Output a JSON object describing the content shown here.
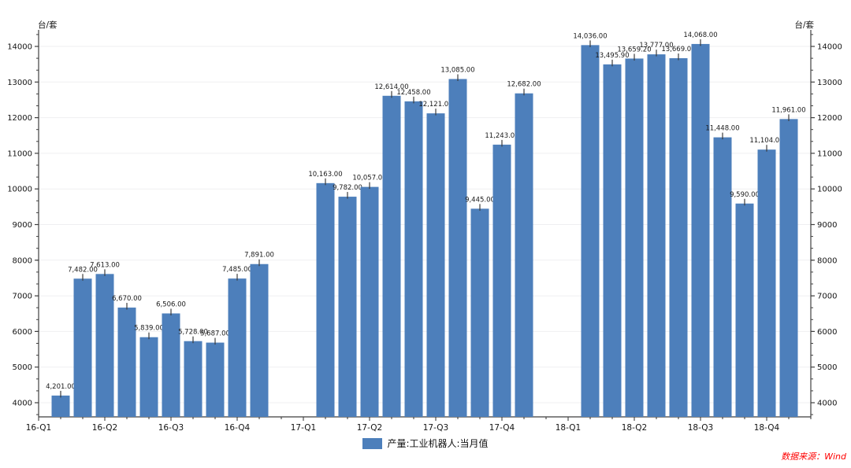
{
  "chart_data": {
    "type": "bar",
    "title": "",
    "unit_left": "台/套",
    "unit_right": "台/套",
    "legend": {
      "label": "产量:工业机器人:当月值"
    },
    "source_note": "数据来源：Wind",
    "colors": {
      "bar": "#4d7fbb",
      "axis": "#3f3f3f",
      "grid": "#efeff1",
      "tick_label": "#141414",
      "value_label": "#1a1a1a",
      "source": "#fe0000"
    },
    "y_axis": {
      "major_min": 4000,
      "major_max": 14000,
      "major_step": 1000,
      "minor_divisions": 3,
      "grid": true,
      "sides": "both"
    },
    "x_axis": {
      "quarter_labels": [
        "16-Q1",
        "16-Q2",
        "16-Q3",
        "16-Q4",
        "17-Q1",
        "17-Q2",
        "17-Q3",
        "17-Q4",
        "18-Q1",
        "18-Q2",
        "18-Q3",
        "18-Q4"
      ],
      "minor_tick_unit": "month",
      "months_span": [
        "2016-01",
        "2018-12"
      ]
    },
    "series": [
      {
        "name": "产量:工业机器人:当月值",
        "points": [
          {
            "month": "2016-02",
            "value": 4201,
            "display": "4,201.00"
          },
          {
            "month": "2016-03",
            "value": 7482,
            "display": "7,482.00"
          },
          {
            "month": "2016-04",
            "value": 7613,
            "display": "7,613.00"
          },
          {
            "month": "2016-05",
            "value": 6670,
            "display": "6,670.00"
          },
          {
            "month": "2016-06",
            "value": 5839,
            "display": "5,839.00"
          },
          {
            "month": "2016-07",
            "value": 6506,
            "display": "6,506.00"
          },
          {
            "month": "2016-08",
            "value": 5728,
            "display": "5,728.00"
          },
          {
            "month": "2016-09",
            "value": 5687,
            "display": "5,687.00"
          },
          {
            "month": "2016-10",
            "value": 7485,
            "display": "7,485.00"
          },
          {
            "month": "2016-11",
            "value": 7891,
            "display": "7,891.00"
          },
          {
            "month": "2017-02",
            "value": 10163,
            "display": "10,163.00"
          },
          {
            "month": "2017-03",
            "value": 9782,
            "display": "9,782.00"
          },
          {
            "month": "2017-04",
            "value": 10057,
            "display": "10,057.00"
          },
          {
            "month": "2017-05",
            "value": 12614,
            "display": "12,614.00"
          },
          {
            "month": "2017-06",
            "value": 12458,
            "display": "12,458.00"
          },
          {
            "month": "2017-07",
            "value": 12121,
            "display": "12,121.00"
          },
          {
            "month": "2017-08",
            "value": 13085,
            "display": "13,085.00"
          },
          {
            "month": "2017-09",
            "value": 9445,
            "display": "9,445.00"
          },
          {
            "month": "2017-10",
            "value": 11243,
            "display": "11,243.00"
          },
          {
            "month": "2017-11",
            "value": 12682,
            "display": "12,682.00"
          },
          {
            "month": "2018-02",
            "value": 14036,
            "display": "14,036.00"
          },
          {
            "month": "2018-03",
            "value": 13495.9,
            "display": "13,495.90"
          },
          {
            "month": "2018-04",
            "value": 13659.2,
            "display": "13,659.20"
          },
          {
            "month": "2018-05",
            "value": 13777,
            "display": "13,777.00"
          },
          {
            "month": "2018-06",
            "value": 13669,
            "display": "13,669.00"
          },
          {
            "month": "2018-07",
            "value": 14068,
            "display": "14,068.00"
          },
          {
            "month": "2018-08",
            "value": 11448,
            "display": "11,448.00"
          },
          {
            "month": "2018-09",
            "value": 9590,
            "display": "9,590.00"
          },
          {
            "month": "2018-10",
            "value": 11104,
            "display": "11,104.00"
          },
          {
            "month": "2018-11",
            "value": 11961,
            "display": "11,961.00"
          }
        ]
      }
    ]
  }
}
